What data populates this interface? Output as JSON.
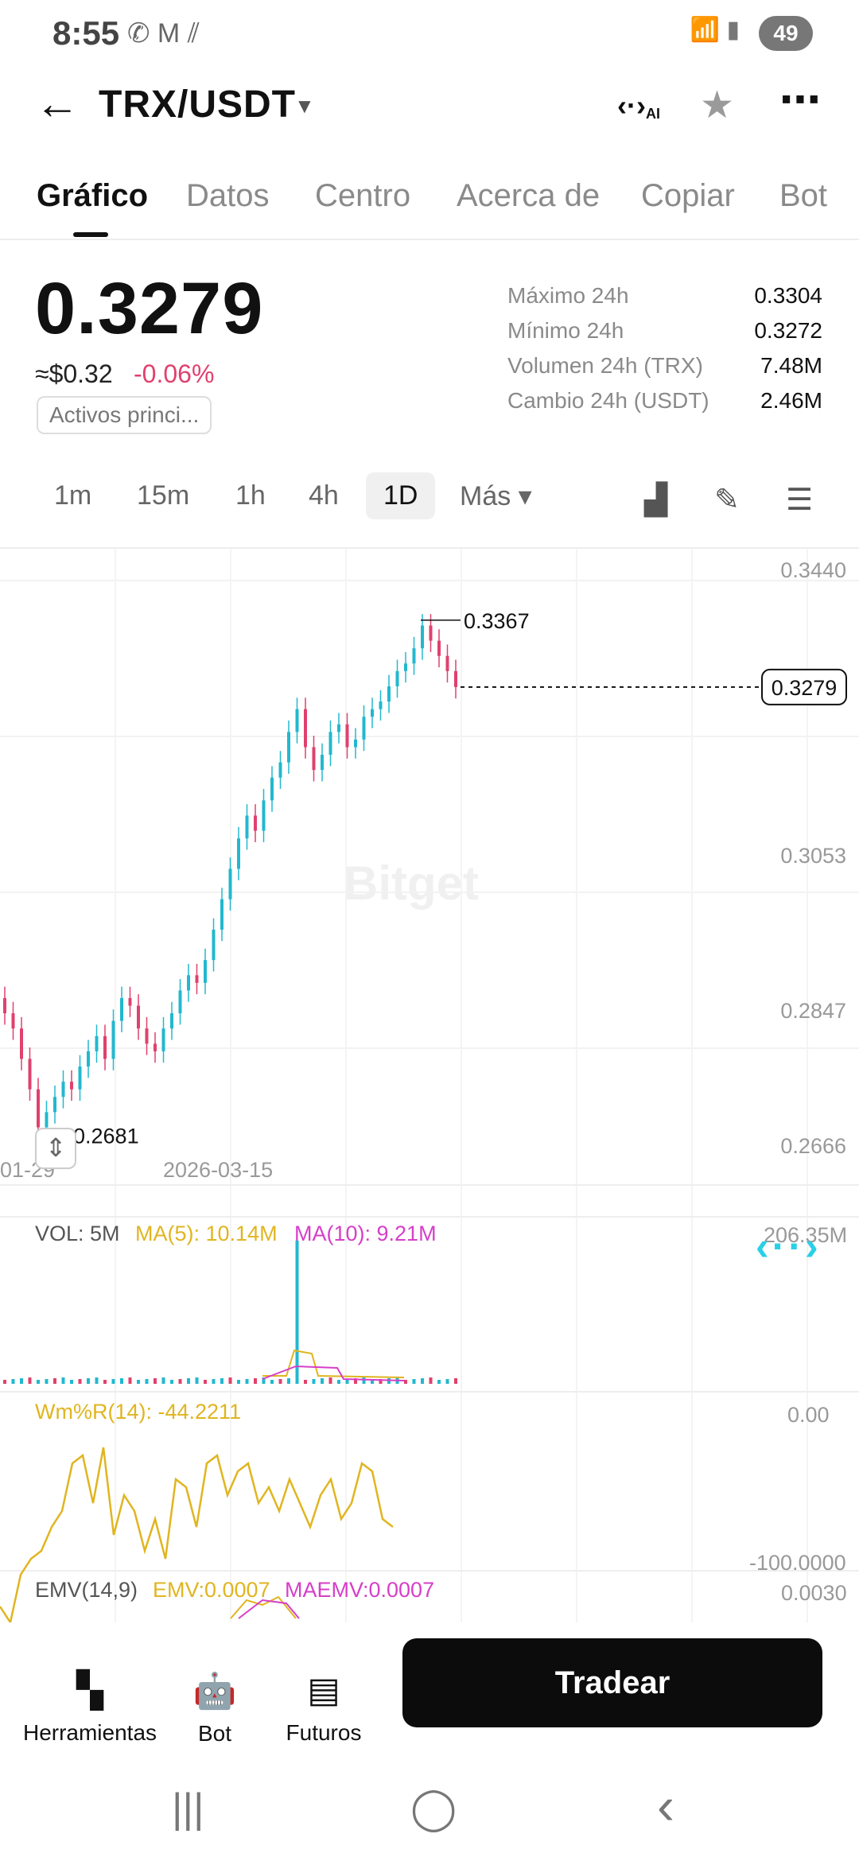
{
  "status_bar": {
    "time": "8:55",
    "left_icons": "✆ M ⫽",
    "right_icons": "📶 ▮",
    "battery": "49"
  },
  "header": {
    "pair": "TRX/USDT",
    "ai_label": "AI"
  },
  "tabs": [
    {
      "label": "Gráfico",
      "active": true
    },
    {
      "label": "Datos"
    },
    {
      "label": "Centro"
    },
    {
      "label": "Acerca de"
    },
    {
      "label": "Copiar"
    },
    {
      "label": "Bot"
    }
  ],
  "price": {
    "last": "0.3279",
    "usd": "≈$0.32",
    "change": "-0.06%",
    "tag": "Activos princi..."
  },
  "stats": [
    {
      "label": "Máximo 24h",
      "value": "0.3304"
    },
    {
      "label": "Mínimo 24h",
      "value": "0.3272"
    },
    {
      "label": "Volumen 24h (TRX)",
      "value": "7.48M"
    },
    {
      "label": "Cambio 24h (USDT)",
      "value": "2.46M"
    }
  ],
  "timeframes": [
    "1m",
    "15m",
    "1h",
    "4h",
    "1D",
    "Más ▾"
  ],
  "active_timeframe": "1D",
  "chart": {
    "y_labels": [
      "0.3440",
      "0.3053",
      "0.2847",
      "0.2666"
    ],
    "x_labels": [
      "01-29",
      "2026-03-15"
    ],
    "current_price": "0.3279",
    "high_label": "0.3367",
    "low_label": "0.2681",
    "watermark": "Bitget",
    "up_color": "#22b8cf",
    "down_color": "#e0416e"
  },
  "chart_data": {
    "type": "candlestick",
    "y_range": [
      0.2666,
      0.344
    ],
    "close_series_approx": [
      0.285,
      0.283,
      0.279,
      0.275,
      0.27,
      0.272,
      0.274,
      0.276,
      0.275,
      0.278,
      0.28,
      0.282,
      0.279,
      0.284,
      0.287,
      0.286,
      0.283,
      0.281,
      0.28,
      0.283,
      0.285,
      0.288,
      0.29,
      0.289,
      0.292,
      0.296,
      0.3,
      0.304,
      0.308,
      0.311,
      0.309,
      0.313,
      0.316,
      0.318,
      0.322,
      0.325,
      0.32,
      0.317,
      0.319,
      0.322,
      0.323,
      0.32,
      0.321,
      0.324,
      0.325,
      0.326,
      0.328,
      0.33,
      0.331,
      0.333,
      0.336,
      0.334,
      0.332,
      0.33,
      0.3279
    ],
    "high": 0.3367,
    "low": 0.2681,
    "last": 0.3279
  },
  "volume": {
    "label": "VOL: 5M",
    "ma5": "MA(5): 10.14M",
    "ma10": "MA(10): 9.21M",
    "max_label": "206.35M"
  },
  "wr": {
    "label": "Wm%R(14): -44.2211",
    "top": "0.00",
    "bottom": "-100.0000"
  },
  "emv": {
    "label": "EMV(14,9)",
    "emv": "EMV:0.0007",
    "maemv": "MAEMV:0.0007",
    "top": "0.0030"
  },
  "bottom_bar": [
    {
      "label": "Herramientas",
      "icon": "▚"
    },
    {
      "label": "Bot",
      "icon": "🤖"
    },
    {
      "label": "Futuros",
      "icon": "▤"
    }
  ],
  "trade_button": "Tradear",
  "system_nav": {
    "recent": "|||",
    "home": "◯",
    "back": "‹"
  }
}
